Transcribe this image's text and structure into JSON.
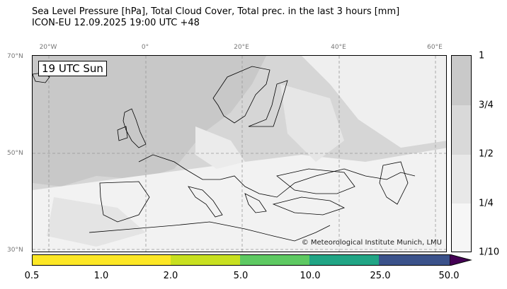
{
  "title": {
    "line1": "Sea Level Pressure [hPa], Total Cloud Cover, Total prec. in the last 3 hours [mm]",
    "line2": "ICON-EU 12.09.2025 19:00 UTC +48"
  },
  "map": {
    "time_label": "19 UTC Sun",
    "copyright": "© Meteorological Institute Munich, LMU",
    "lon_ticks": [
      "20°W",
      "0°",
      "20°E",
      "40°E",
      "60°E"
    ],
    "lat_ticks": [
      "70°N",
      "50°N",
      "30°N"
    ]
  },
  "cloud_colorbar": {
    "labels": [
      "1",
      "3/4",
      "1/2",
      "1/4",
      "1/10"
    ],
    "colors": [
      "#c9c9c9",
      "#d9d9d9",
      "#e8e8e8",
      "#f6f6f6"
    ]
  },
  "precip_colorbar": {
    "labels": [
      "0.5",
      "1.0",
      "2.0",
      "5.0",
      "10.0",
      "25.0",
      "50.0"
    ],
    "colors": [
      "#fde725",
      "#c8e020",
      "#5ec962",
      "#21a585",
      "#3b528b",
      "#440154"
    ]
  }
}
